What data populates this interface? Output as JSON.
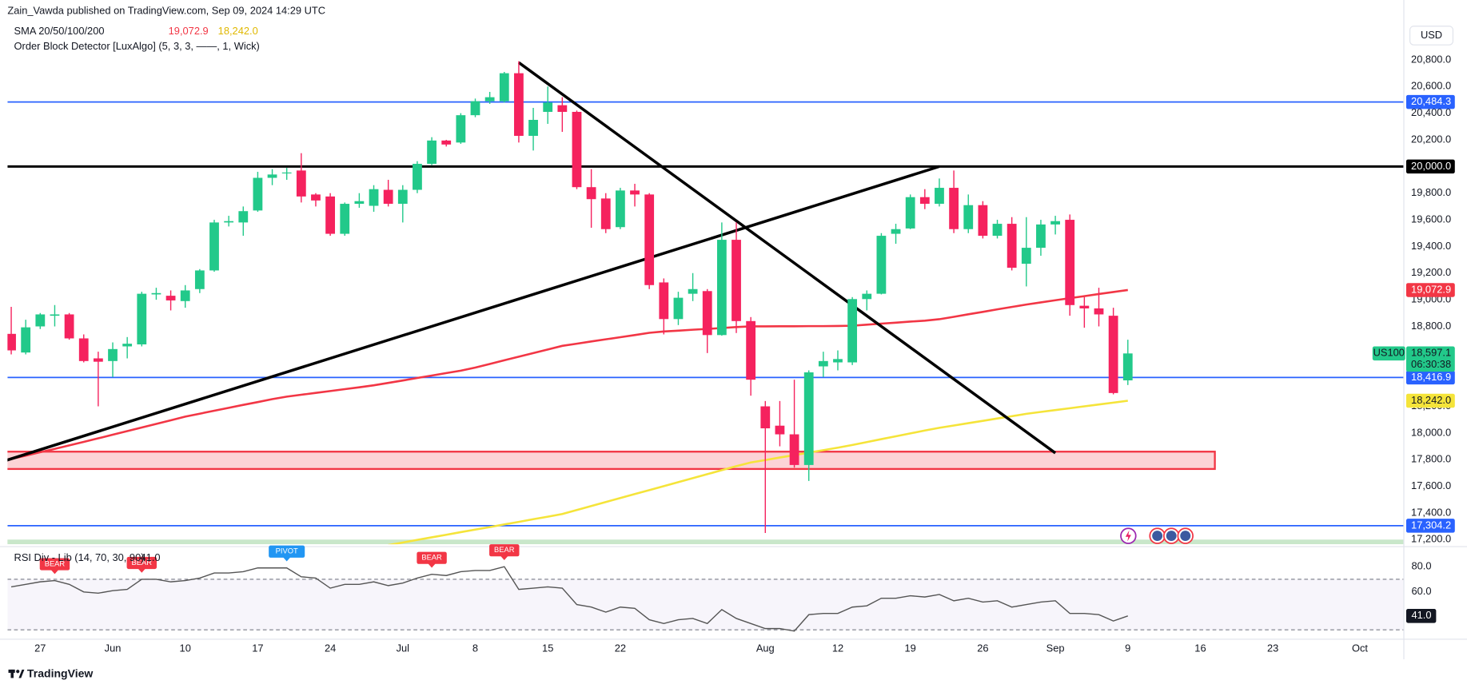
{
  "header": {
    "publisher": "Zain_Vawda published on TradingView.com, Sep 09, 2024 14:29 UTC",
    "currency": "USD",
    "brand": "TradingView"
  },
  "chart_data": {
    "type": "candlestick",
    "symbol": "US100",
    "countdown": "06:30:38",
    "up_color": "#22c98a",
    "down_color": "#f5225e",
    "x": [
      "2024-05-23",
      "2024-05-24",
      "2024-05-27",
      "2024-05-28",
      "2024-05-29",
      "2024-05-30",
      "2024-05-31",
      "2024-06-03",
      "2024-06-04",
      "2024-06-05",
      "2024-06-06",
      "2024-06-07",
      "2024-06-10",
      "2024-06-11",
      "2024-06-12",
      "2024-06-13",
      "2024-06-14",
      "2024-06-17",
      "2024-06-18",
      "2024-06-19",
      "2024-06-20",
      "2024-06-21",
      "2024-06-24",
      "2024-06-25",
      "2024-06-26",
      "2024-06-27",
      "2024-06-28",
      "2024-07-01",
      "2024-07-02",
      "2024-07-03",
      "2024-07-04",
      "2024-07-05",
      "2024-07-08",
      "2024-07-09",
      "2024-07-10",
      "2024-07-11",
      "2024-07-12",
      "2024-07-15",
      "2024-07-16",
      "2024-07-17",
      "2024-07-18",
      "2024-07-19",
      "2024-07-22",
      "2024-07-23",
      "2024-07-24",
      "2024-07-25",
      "2024-07-26",
      "2024-07-29",
      "2024-07-30",
      "2024-07-31",
      "2024-08-01",
      "2024-08-02",
      "2024-08-05",
      "2024-08-06",
      "2024-08-07",
      "2024-08-08",
      "2024-08-09",
      "2024-08-12",
      "2024-08-13",
      "2024-08-14",
      "2024-08-15",
      "2024-08-16",
      "2024-08-19",
      "2024-08-20",
      "2024-08-21",
      "2024-08-22",
      "2024-08-23",
      "2024-08-26",
      "2024-08-27",
      "2024-08-28",
      "2024-08-29",
      "2024-08-30",
      "2024-09-02",
      "2024-09-03",
      "2024-09-04",
      "2024-09-05",
      "2024-09-06",
      "2024-09-09"
    ],
    "open": [
      18744,
      18604,
      18800,
      18880,
      18890,
      18710,
      18560,
      18540,
      18650,
      18665,
      19040,
      19030,
      18990,
      19080,
      19220,
      19580,
      19580,
      19670,
      19915,
      19950,
      19970,
      19790,
      19775,
      19495,
      19720,
      19705,
      19825,
      19720,
      19825,
      20020,
      20195,
      20180,
      20385,
      20490,
      20490,
      20700,
      20230,
      20410,
      20460,
      20410,
      19845,
      19760,
      19545,
      19820,
      19790,
      19130,
      18855,
      19045,
      19065,
      18735,
      19450,
      18840,
      18200,
      18055,
      17990,
      17760,
      18500,
      18530,
      18530,
      19005,
      19045,
      19495,
      19535,
      19770,
      19720,
      19840,
      19530,
      19710,
      19480,
      19570,
      19270,
      19390,
      19565,
      19600,
      18955,
      18935,
      18880,
      18395
    ],
    "high": [
      18947,
      18850,
      18900,
      18960,
      18900,
      18740,
      18610,
      18680,
      18720,
      19060,
      19090,
      19070,
      19110,
      19230,
      19600,
      19630,
      19700,
      19960,
      19980,
      19990,
      20100,
      19800,
      19800,
      19730,
      19800,
      19860,
      19900,
      19860,
      20040,
      20220,
      20200,
      20400,
      20510,
      20560,
      20710,
      20790,
      20440,
      20600,
      20520,
      20420,
      19980,
      19800,
      19840,
      19870,
      19800,
      19160,
      19060,
      19200,
      19080,
      19580,
      19580,
      18870,
      18240,
      18240,
      18400,
      18470,
      18610,
      18620,
      19020,
      19070,
      19500,
      19570,
      19790,
      19830,
      19910,
      19970,
      19790,
      19740,
      19600,
      19620,
      19620,
      19600,
      19630,
      19640,
      19020,
      19090,
      18940,
      18700
    ],
    "low": [
      18590,
      18590,
      18780,
      18800,
      18700,
      18530,
      18200,
      18420,
      18560,
      18650,
      19000,
      18920,
      18940,
      19050,
      19210,
      19550,
      19480,
      19660,
      19860,
      19900,
      19730,
      19700,
      19480,
      19480,
      19690,
      19660,
      19700,
      19580,
      19800,
      20010,
      20150,
      20170,
      20370,
      20470,
      20480,
      20180,
      20120,
      20320,
      20260,
      19830,
      19540,
      19500,
      19530,
      19700,
      19080,
      18740,
      18810,
      18990,
      18600,
      18730,
      18750,
      18280,
      17250,
      17900,
      17740,
      17640,
      18420,
      18470,
      18510,
      18920,
      19040,
      19420,
      19530,
      19680,
      19700,
      19500,
      19500,
      19460,
      19460,
      19220,
      19100,
      19330,
      19490,
      18880,
      18790,
      18800,
      18290,
      18360
    ],
    "close": [
      18620,
      18793,
      18890,
      18890,
      18710,
      18540,
      18535,
      18630,
      18670,
      19045,
      19050,
      18995,
      19070,
      19220,
      19580,
      19590,
      19665,
      19915,
      19940,
      19955,
      19775,
      19745,
      19495,
      19720,
      19740,
      19830,
      19720,
      19825,
      20020,
      20195,
      20165,
      20385,
      20490,
      20520,
      20700,
      20230,
      20350,
      20480,
      20410,
      19845,
      19755,
      19530,
      19820,
      19790,
      19110,
      18855,
      19015,
      19080,
      18735,
      19450,
      18840,
      18400,
      18035,
      17990,
      17760,
      18455,
      18540,
      18555,
      19005,
      19045,
      19480,
      19530,
      19770,
      19720,
      19840,
      19530,
      19710,
      19480,
      19570,
      19240,
      19390,
      19565,
      19590,
      18960,
      18935,
      18890,
      18300,
      18597.1
    ],
    "close_label": "18,597.1",
    "xlim": [
      "2024-05-23",
      "2024-10-04"
    ],
    "xticks": [
      {
        "value": "2024-05-27",
        "label": "27"
      },
      {
        "value": "2024-06-03",
        "label": "Jun"
      },
      {
        "value": "2024-06-10",
        "label": "10"
      },
      {
        "value": "2024-06-17",
        "label": "17"
      },
      {
        "value": "2024-06-24",
        "label": "24"
      },
      {
        "value": "2024-07-01",
        "label": "Jul"
      },
      {
        "value": "2024-07-08",
        "label": "8"
      },
      {
        "value": "2024-07-15",
        "label": "15"
      },
      {
        "value": "2024-07-22",
        "label": "22"
      },
      {
        "value": "2024-08-05",
        "label": "Aug"
      },
      {
        "value": "2024-08-12",
        "label": "12"
      },
      {
        "value": "2024-08-19",
        "label": "19"
      },
      {
        "value": "2024-08-26",
        "label": "26"
      },
      {
        "value": "2024-09-02",
        "label": "Sep"
      },
      {
        "value": "2024-09-09",
        "label": "9"
      },
      {
        "value": "2024-09-16",
        "label": "16"
      },
      {
        "value": "2024-09-23",
        "label": "23"
      },
      {
        "value": "2024-10-01",
        "label": "Oct"
      }
    ],
    "ylim": [
      17165,
      21053
    ],
    "yticks": [
      {
        "value": 17200,
        "label": "17,200.0"
      },
      {
        "value": 17400,
        "label": "17,400.0"
      },
      {
        "value": 17600,
        "label": "17,600.0"
      },
      {
        "value": 17800,
        "label": "17,800.0"
      },
      {
        "value": 18000,
        "label": "18,000.0"
      },
      {
        "value": 18200,
        "label": "18,200.0"
      },
      {
        "value": 18400,
        "label": "18,400.0"
      },
      {
        "value": 18600,
        "label": "18,600.0"
      },
      {
        "value": 18800,
        "label": "18,800.0"
      },
      {
        "value": 19000,
        "label": "19,000.0"
      },
      {
        "value": 19200,
        "label": "19,200.0"
      },
      {
        "value": 19400,
        "label": "19,400.0"
      },
      {
        "value": 19600,
        "label": "19,600.0"
      },
      {
        "value": 19800,
        "label": "19,800.0"
      },
      {
        "value": 20000,
        "label": "20,000.0"
      },
      {
        "value": 20200,
        "label": "20,200.0"
      },
      {
        "value": 20400,
        "label": "20,400.0"
      },
      {
        "value": 20600,
        "label": "20,600.0"
      },
      {
        "value": 20800,
        "label": "20,800.0"
      }
    ],
    "grid": false,
    "sma": {
      "name": "SMA 20/50/100/200",
      "lines": [
        {
          "color": "#f23645",
          "value_label": "19,072.9",
          "values": [
            17805,
            17830,
            17856,
            17881,
            17907,
            17933,
            17960,
            17987,
            18014,
            18041,
            18068,
            18095,
            18123,
            18145,
            18167,
            18189,
            18211,
            18232,
            18254,
            18273,
            18287,
            18301,
            18315,
            18329,
            18343,
            18358,
            18376,
            18394,
            18413,
            18431,
            18450,
            18468,
            18491,
            18518,
            18546,
            18573,
            18600,
            18627,
            18654,
            18670,
            18687,
            18703,
            18719,
            18735,
            18752,
            18762,
            18768,
            18775,
            18781,
            18788,
            18795,
            18800,
            18800,
            18801,
            18801,
            18802,
            18802,
            18803,
            18805,
            18813,
            18821,
            18828,
            18836,
            18843,
            18854,
            18872,
            18891,
            18909,
            18928,
            18946,
            18964,
            18980,
            18996,
            19012,
            19027,
            19043,
            19058,
            19072.9
          ]
        },
        {
          "color": "#f5e43a",
          "value_label": "18,242.0",
          "values": [
            null,
            null,
            null,
            null,
            null,
            null,
            null,
            null,
            null,
            null,
            null,
            null,
            null,
            null,
            null,
            null,
            null,
            null,
            null,
            null,
            null,
            null,
            null,
            null,
            null,
            null,
            17159,
            17178,
            17198,
            17217,
            17236,
            17256,
            17275,
            17294,
            17314,
            17333,
            17353,
            17372,
            17392,
            17422,
            17452,
            17482,
            17512,
            17542,
            17571,
            17601,
            17631,
            17661,
            17691,
            17721,
            17751,
            17779,
            17797,
            17816,
            17834,
            17853,
            17871,
            17890,
            17910,
            17932,
            17954,
            17975,
            17997,
            18019,
            18039,
            18056,
            18074,
            18091,
            18109,
            18126,
            18144,
            18158,
            18172,
            18186,
            18200,
            18214,
            18228,
            18242.0
          ]
        }
      ]
    },
    "order_block_detector": {
      "name": "Order Block Detector [LuxAlgo] (5, 3, 3, ——, 1, Wick)",
      "blocks": [
        {
          "start": "2024-05-22",
          "end": "2024-09-17",
          "top": 17860,
          "bottom": 17730,
          "color": "#f23645"
        },
        {
          "start": "2024-05-22",
          "end": "2024-10-04",
          "top": 17200,
          "bottom": 17165,
          "color": "#4caf50"
        }
      ]
    },
    "hlines": [
      {
        "value": 20484.3,
        "label": "20,484.3",
        "color": "#2962ff"
      },
      {
        "value": 20000,
        "label": "20,000.0",
        "color": "#000000"
      },
      {
        "value": 18416.9,
        "label": "18,416.9",
        "color": "#2962ff"
      },
      {
        "value": 17304.2,
        "label": "17,304.2",
        "color": "#2962ff"
      }
    ],
    "trendlines": [
      {
        "start_x": "2024-05-22",
        "start_y": 17772,
        "end_x": "2024-08-21",
        "end_y": 20000,
        "color": "#000000"
      },
      {
        "start_x": "2024-07-11",
        "start_y": 20780,
        "end_x": "2024-09-02",
        "end_y": 17850,
        "color": "#000000"
      }
    ],
    "rsi": {
      "title": "RSI Div - Lib (14, 70, 30, 90)",
      "color": "#555555",
      "values": [
        64,
        66,
        68,
        69,
        66,
        60,
        59,
        61,
        62,
        70,
        70,
        68,
        69,
        71,
        75,
        75,
        76,
        79,
        79,
        79,
        72,
        71,
        63,
        66,
        66,
        68,
        65,
        67,
        71,
        74,
        73,
        76,
        77,
        77,
        80,
        62,
        63,
        64,
        63,
        50,
        48,
        44,
        48,
        47,
        38,
        35,
        38,
        39,
        35,
        46,
        39,
        35,
        31,
        31,
        29,
        42,
        43,
        43,
        48,
        49,
        55,
        55,
        57,
        56,
        58,
        53,
        55,
        52,
        53,
        48,
        50,
        52,
        53,
        43,
        43,
        42,
        37,
        41.0
      ],
      "value_label": "41.0",
      "ylim": [
        23.7,
        93.3
      ],
      "yticks": [
        {
          "value": 80,
          "label": "80.0"
        },
        {
          "value": 60,
          "label": "60.0"
        }
      ],
      "bands": [
        70,
        30
      ],
      "signals": [
        {
          "x": "2024-05-28",
          "label": "BEAR",
          "color": "#f23645"
        },
        {
          "x": "2024-06-05",
          "label": "BEAR",
          "color": "#f23645"
        },
        {
          "x": "2024-06-19",
          "label": "PIVOT",
          "color": "#2196f3"
        },
        {
          "x": "2024-07-03",
          "label": "BEAR",
          "color": "#f23645"
        },
        {
          "x": "2024-07-10",
          "label": "BEAR",
          "color": "#f23645"
        }
      ]
    }
  }
}
